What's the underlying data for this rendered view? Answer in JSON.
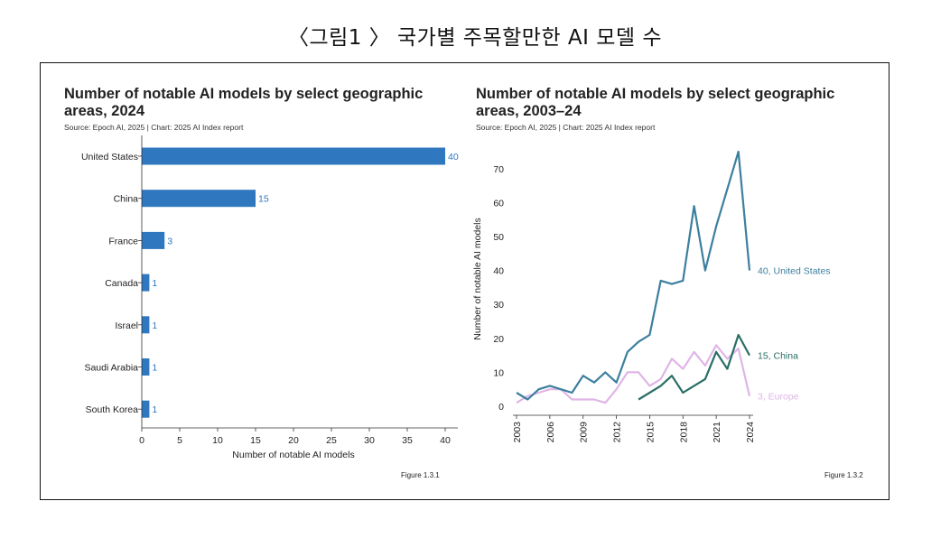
{
  "caption": "〈그림1 〉 국가별 주목할만한 AI 모델 수",
  "colors": {
    "bar": "#2f77bf",
    "us_line": "#3c7f9e",
    "china_line": "#2a6e66",
    "europe_line": "#dfb5e6",
    "axis": "#333333"
  },
  "chart_data": [
    {
      "type": "bar",
      "orientation": "horizontal",
      "title": "Number of notable AI models by select geographic areas, 2024",
      "source": "Source: Epoch AI, 2025 | Chart: 2025 AI Index report",
      "categories": [
        "United States",
        "China",
        "France",
        "Canada",
        "Israel",
        "Saudi Arabia",
        "South Korea"
      ],
      "values": [
        40,
        15,
        3,
        1,
        1,
        1,
        1
      ],
      "xlabel": "Number of notable AI models",
      "ylabel": "",
      "xlim": [
        0,
        40
      ],
      "xticks": [
        0,
        5,
        10,
        15,
        20,
        25,
        30,
        35,
        40
      ],
      "figure_label": "Figure 1.3.1"
    },
    {
      "type": "line",
      "title": "Number of notable AI models by select geographic areas, 2003–24",
      "source": "Source: Epoch AI, 2025 | Chart: 2025 AI Index report",
      "xlabel": "",
      "ylabel": "Number of notable AI models",
      "xlim": [
        2003,
        2024
      ],
      "ylim": [
        0,
        75
      ],
      "xticks": [
        2003,
        2006,
        2009,
        2012,
        2015,
        2018,
        2021,
        2024
      ],
      "yticks": [
        0,
        10,
        20,
        30,
        40,
        50,
        60,
        70
      ],
      "series": [
        {
          "name": "United States",
          "end_label": "40, United States",
          "x": [
            2003,
            2004,
            2005,
            2006,
            2007,
            2008,
            2009,
            2010,
            2011,
            2012,
            2013,
            2014,
            2015,
            2016,
            2017,
            2018,
            2019,
            2020,
            2021,
            2022,
            2023,
            2024
          ],
          "values": [
            4,
            2,
            5,
            6,
            5,
            4,
            9,
            7,
            10,
            7,
            16,
            19,
            21,
            37,
            36,
            37,
            59,
            40,
            53,
            64,
            75,
            40
          ]
        },
        {
          "name": "China",
          "end_label": "15, China",
          "x": [
            2014,
            2015,
            2016,
            2017,
            2018,
            2019,
            2020,
            2021,
            2022,
            2023,
            2024
          ],
          "values": [
            2,
            4,
            6,
            9,
            4,
            6,
            8,
            16,
            11,
            21,
            15
          ]
        },
        {
          "name": "Europe",
          "end_label": "3, Europe",
          "x": [
            2003,
            2004,
            2005,
            2006,
            2007,
            2008,
            2009,
            2010,
            2011,
            2012,
            2013,
            2014,
            2015,
            2016,
            2017,
            2018,
            2019,
            2020,
            2021,
            2022,
            2023,
            2024
          ],
          "values": [
            1,
            3,
            4,
            5,
            5,
            2,
            2,
            2,
            1,
            5,
            10,
            10,
            6,
            8,
            14,
            11,
            16,
            12,
            18,
            14,
            17,
            3
          ]
        }
      ],
      "figure_label": "Figure 1.3.2"
    }
  ]
}
